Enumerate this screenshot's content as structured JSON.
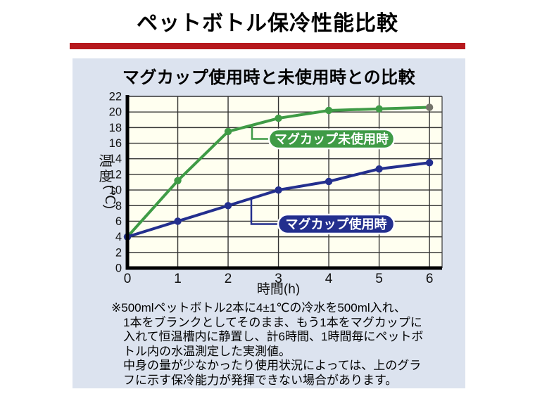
{
  "page_title": "ペットボトル保冷性能比較",
  "panel": {
    "subtitle": "マグカップ使用時と未使用時との比較",
    "note_lines": [
      "※500mlペットボトル2本に4±1℃の冷水を500ml入れ、",
      "1本をブランクとしてそのまま、もう1本をマグカップに",
      "入れて恒温槽内に静置し、計6時間、1時間毎にペットボ",
      "トル内の水温測定した実測値。",
      "中身の量が少なかったり使用状況によっては、上のグラ",
      "フに示す保冷能力が発揮できない場合があります。"
    ]
  },
  "colors": {
    "accent_bar": "#B6191D",
    "panel_bg": "#DCE3EF",
    "plot_bg": "#FFFFF0",
    "grid": "#333333",
    "axis": "#000000",
    "series_no_mug": "#3F9B46",
    "series_mug": "#232F8E",
    "final_point_gray": "#75756B"
  },
  "chart_data": {
    "type": "line",
    "title": "マグカップ使用時と未使用時との比較",
    "x": [
      0,
      1,
      2,
      3,
      4,
      5,
      6
    ],
    "series": [
      {
        "name": "マグカップ未使用時",
        "color": "#3F9B46",
        "values": [
          4,
          11.2,
          17.5,
          19.2,
          20.2,
          20.4,
          20.6
        ],
        "last_marker_color": "#75756B"
      },
      {
        "name": "マグカップ使用時",
        "color": "#232F8E",
        "values": [
          4,
          6,
          8,
          10,
          11.1,
          12.7,
          13.5
        ]
      }
    ],
    "xlabel": "時間(h)",
    "ylabel": "温度(℃)",
    "ylabel_parts": [
      "温",
      "度",
      "(℃)"
    ],
    "xlim": [
      0,
      6.25
    ],
    "ylim": [
      0,
      22
    ],
    "xticks": [
      0,
      1,
      2,
      3,
      4,
      5,
      6
    ],
    "ytick_step": 2,
    "grid": true,
    "legend_position": "inline-badges"
  }
}
